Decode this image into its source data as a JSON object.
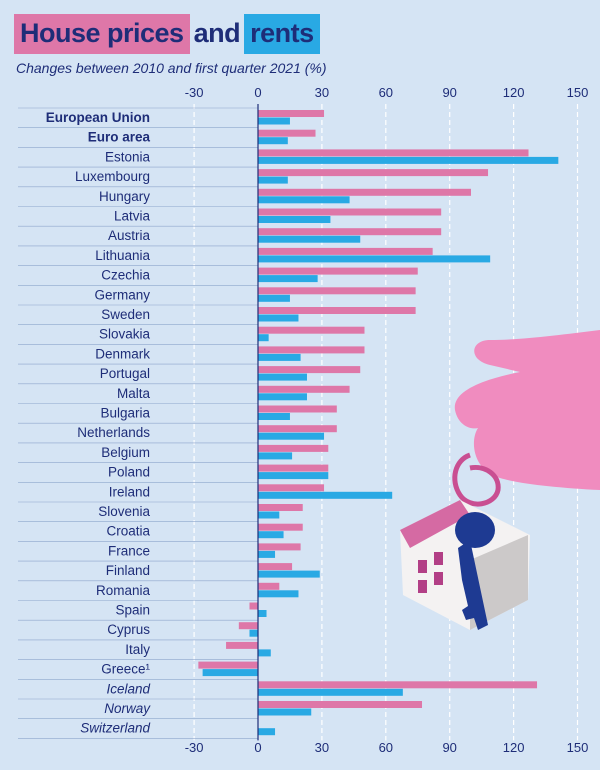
{
  "title": {
    "part1": "House prices",
    "part2": "and",
    "part3": "rents"
  },
  "subtitle": "Changes between 2010 and first quarter 2021 (%)",
  "colors": {
    "house_prices": "#de77a8",
    "rents": "#29a9e4",
    "text": "#1e2d78",
    "grid": "#ffffff",
    "background": "#d5e4f4",
    "hand": "#f08cbf"
  },
  "chart_data": {
    "type": "bar",
    "orientation": "horizontal",
    "xlim": [
      -30,
      150
    ],
    "xticks": [
      -30,
      0,
      30,
      60,
      90,
      120,
      150
    ],
    "grid": true,
    "categories": [
      "European Union",
      "Euro area",
      "Estonia",
      "Luxembourg",
      "Hungary",
      "Latvia",
      "Austria",
      "Lithuania",
      "Czechia",
      "Germany",
      "Sweden",
      "Slovakia",
      "Denmark",
      "Portugal",
      "Malta",
      "Bulgaria",
      "Netherlands",
      "Belgium",
      "Poland",
      "Ireland",
      "Slovenia",
      "Croatia",
      "France",
      "Finland",
      "Romania",
      "Spain",
      "Cyprus",
      "Italy",
      "Greece¹",
      "Iceland",
      "Norway",
      "Switzerland"
    ],
    "category_style": [
      "bold",
      "bold",
      "normal",
      "normal",
      "normal",
      "normal",
      "normal",
      "normal",
      "normal",
      "normal",
      "normal",
      "normal",
      "normal",
      "normal",
      "normal",
      "normal",
      "normal",
      "normal",
      "normal",
      "normal",
      "normal",
      "normal",
      "normal",
      "normal",
      "normal",
      "normal",
      "normal",
      "normal",
      "normal",
      "italic",
      "italic",
      "italic"
    ],
    "series": [
      {
        "key": "house_prices",
        "values": [
          31,
          27,
          127,
          108,
          100,
          86,
          86,
          82,
          75,
          74,
          74,
          50,
          50,
          48,
          43,
          37,
          37,
          33,
          33,
          31,
          21,
          21,
          20,
          16,
          10,
          -4,
          -9,
          -15,
          -28,
          131,
          77,
          null
        ]
      },
      {
        "key": "rents",
        "values": [
          15,
          14,
          141,
          14,
          43,
          34,
          48,
          109,
          28,
          15,
          19,
          5,
          20,
          23,
          23,
          15,
          31,
          16,
          33,
          63,
          10,
          12,
          8,
          29,
          19,
          4,
          -4,
          6,
          -26,
          68,
          25,
          8
        ]
      }
    ]
  }
}
